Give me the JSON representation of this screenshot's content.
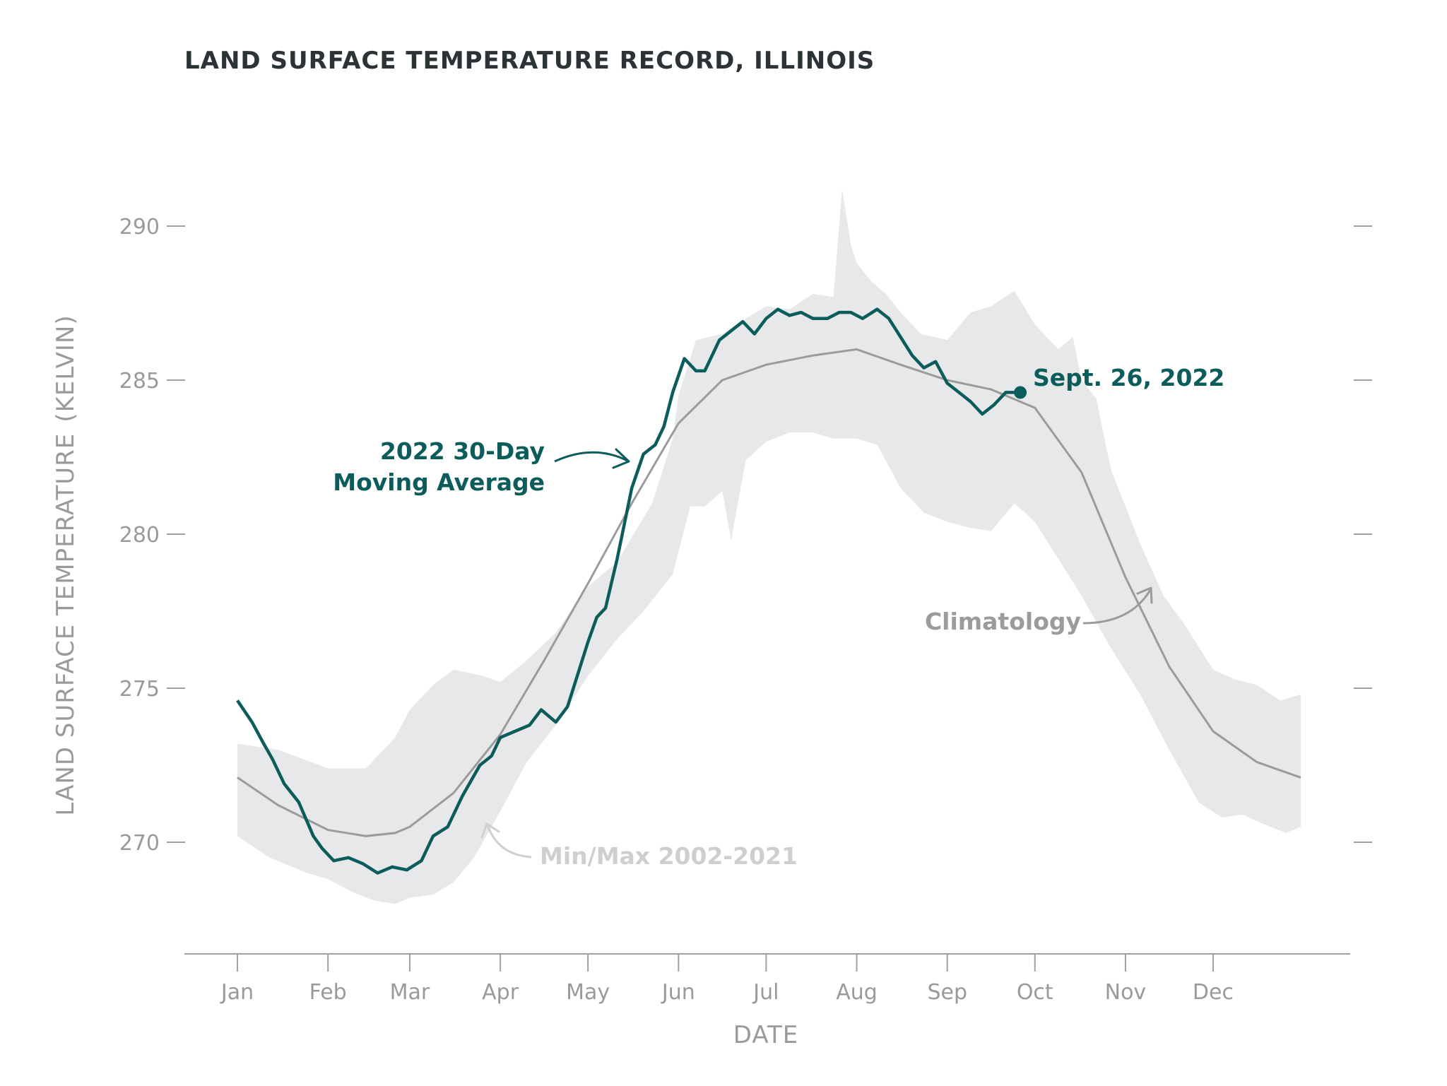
{
  "chart_data": {
    "type": "line",
    "title": "LAND SURFACE TEMPERATURE RECORD, ILLINOIS",
    "xlabel": "DATE",
    "ylabel": "LAND SURFACE TEMPERATURE",
    "ylabel_units": "(KELVIN)",
    "ylim": [
      266,
      295
    ],
    "yticks": [
      270,
      275,
      280,
      285,
      290
    ],
    "x_unit": "day_of_year",
    "xlim": [
      1,
      365
    ],
    "months": [
      {
        "label": "Jan",
        "day": 1
      },
      {
        "label": "Feb",
        "day": 32
      },
      {
        "label": "Mar",
        "day": 60
      },
      {
        "label": "Apr",
        "day": 91
      },
      {
        "label": "May",
        "day": 121
      },
      {
        "label": "Jun",
        "day": 152
      },
      {
        "label": "Jul",
        "day": 182
      },
      {
        "label": "Aug",
        "day": 213
      },
      {
        "label": "Sep",
        "day": 244
      },
      {
        "label": "Oct",
        "day": 274
      },
      {
        "label": "Nov",
        "day": 305
      },
      {
        "label": "Dec",
        "day": 335
      }
    ],
    "series": [
      {
        "name": "Climatology",
        "color": "#9b9b9b",
        "points": [
          [
            1,
            272.1
          ],
          [
            15,
            271.2
          ],
          [
            32,
            270.4
          ],
          [
            45,
            270.2
          ],
          [
            55,
            270.3
          ],
          [
            60,
            270.5
          ],
          [
            75,
            271.6
          ],
          [
            91,
            273.5
          ],
          [
            106,
            275.9
          ],
          [
            121,
            278.4
          ],
          [
            136,
            281.0
          ],
          [
            152,
            283.6
          ],
          [
            167,
            285.0
          ],
          [
            182,
            285.5
          ],
          [
            198,
            285.8
          ],
          [
            213,
            286.0
          ],
          [
            228,
            285.5
          ],
          [
            244,
            285.0
          ],
          [
            259,
            284.7
          ],
          [
            274,
            284.1
          ],
          [
            290,
            282.0
          ],
          [
            305,
            278.6
          ],
          [
            320,
            275.7
          ],
          [
            335,
            273.6
          ],
          [
            350,
            272.6
          ],
          [
            365,
            272.1
          ]
        ]
      },
      {
        "name": "2022 30-Day Moving Average",
        "color": "#0d5c5c",
        "points": [
          [
            1,
            274.6
          ],
          [
            6,
            273.9
          ],
          [
            10,
            273.2
          ],
          [
            13,
            272.7
          ],
          [
            17,
            271.9
          ],
          [
            22,
            271.3
          ],
          [
            27,
            270.2
          ],
          [
            30,
            269.8
          ],
          [
            34,
            269.4
          ],
          [
            39,
            269.5
          ],
          [
            44,
            269.3
          ],
          [
            49,
            269.0
          ],
          [
            54,
            269.2
          ],
          [
            59,
            269.1
          ],
          [
            64,
            269.4
          ],
          [
            68,
            270.2
          ],
          [
            73,
            270.5
          ],
          [
            78,
            271.5
          ],
          [
            84,
            272.5
          ],
          [
            88,
            272.8
          ],
          [
            91,
            273.4
          ],
          [
            96,
            273.6
          ],
          [
            101,
            273.8
          ],
          [
            105,
            274.3
          ],
          [
            110,
            273.9
          ],
          [
            114,
            274.4
          ],
          [
            118,
            275.6
          ],
          [
            121,
            276.5
          ],
          [
            124,
            277.3
          ],
          [
            127,
            277.6
          ],
          [
            131,
            279.2
          ],
          [
            136,
            281.5
          ],
          [
            140,
            282.6
          ],
          [
            144,
            282.9
          ],
          [
            147,
            283.5
          ],
          [
            150,
            284.6
          ],
          [
            154,
            285.7
          ],
          [
            158,
            285.3
          ],
          [
            161,
            285.3
          ],
          [
            166,
            286.3
          ],
          [
            170,
            286.6
          ],
          [
            174,
            286.9
          ],
          [
            178,
            286.5
          ],
          [
            182,
            287.0
          ],
          [
            186,
            287.3
          ],
          [
            190,
            287.1
          ],
          [
            194,
            287.2
          ],
          [
            198,
            287.0
          ],
          [
            203,
            287.0
          ],
          [
            207,
            287.2
          ],
          [
            211,
            287.2
          ],
          [
            215,
            287.0
          ],
          [
            220,
            287.3
          ],
          [
            224,
            287.0
          ],
          [
            228,
            286.4
          ],
          [
            232,
            285.8
          ],
          [
            236,
            285.4
          ],
          [
            240,
            285.6
          ],
          [
            244,
            284.9
          ],
          [
            248,
            284.6
          ],
          [
            252,
            284.3
          ],
          [
            256,
            283.9
          ],
          [
            260,
            284.2
          ],
          [
            264,
            284.6
          ],
          [
            266,
            284.6
          ],
          [
            269,
            284.6
          ]
        ]
      }
    ],
    "band": {
      "name": "Min/Max 2002-2021",
      "color": "#e7e8e9",
      "upper": [
        [
          1,
          273.2
        ],
        [
          15,
          273.0
        ],
        [
          32,
          272.4
        ],
        [
          45,
          272.4
        ],
        [
          55,
          273.4
        ],
        [
          60,
          274.3
        ],
        [
          68,
          275.1
        ],
        [
          75,
          275.6
        ],
        [
          85,
          275.4
        ],
        [
          91,
          275.2
        ],
        [
          100,
          275.9
        ],
        [
          110,
          276.8
        ],
        [
          121,
          278.3
        ],
        [
          131,
          279.1
        ],
        [
          136,
          279.9
        ],
        [
          143,
          281.0
        ],
        [
          150,
          283.1
        ],
        [
          152,
          284.5
        ],
        [
          158,
          286.3
        ],
        [
          167,
          286.5
        ],
        [
          175,
          287.0
        ],
        [
          182,
          287.4
        ],
        [
          190,
          287.3
        ],
        [
          198,
          287.8
        ],
        [
          205,
          287.7
        ],
        [
          208,
          291.2
        ],
        [
          211,
          289.4
        ],
        [
          213,
          288.8
        ],
        [
          218,
          288.2
        ],
        [
          223,
          287.8
        ],
        [
          228,
          287.2
        ],
        [
          235,
          286.5
        ],
        [
          244,
          286.3
        ],
        [
          252,
          287.2
        ],
        [
          259,
          287.4
        ],
        [
          267,
          287.9
        ],
        [
          274,
          286.8
        ],
        [
          282,
          286.0
        ],
        [
          287,
          286.4
        ],
        [
          290,
          285.0
        ],
        [
          295,
          284.4
        ],
        [
          300,
          282.1
        ],
        [
          305,
          280.9
        ],
        [
          310,
          279.7
        ],
        [
          318,
          278.0
        ],
        [
          325,
          277.1
        ],
        [
          335,
          275.6
        ],
        [
          342,
          275.3
        ],
        [
          350,
          275.1
        ],
        [
          358,
          274.6
        ],
        [
          365,
          274.8
        ]
      ],
      "lower": [
        [
          1,
          270.2
        ],
        [
          12,
          269.5
        ],
        [
          25,
          269.0
        ],
        [
          32,
          268.8
        ],
        [
          40,
          268.4
        ],
        [
          48,
          268.1
        ],
        [
          55,
          268.0
        ],
        [
          60,
          268.2
        ],
        [
          68,
          268.3
        ],
        [
          75,
          268.7
        ],
        [
          82,
          269.5
        ],
        [
          91,
          271.0
        ],
        [
          100,
          272.6
        ],
        [
          110,
          273.8
        ],
        [
          121,
          275.4
        ],
        [
          131,
          276.6
        ],
        [
          140,
          277.5
        ],
        [
          150,
          278.7
        ],
        [
          156,
          280.9
        ],
        [
          161,
          280.9
        ],
        [
          167,
          281.4
        ],
        [
          170,
          279.8
        ],
        [
          175,
          282.4
        ],
        [
          182,
          283.0
        ],
        [
          190,
          283.3
        ],
        [
          198,
          283.3
        ],
        [
          205,
          283.1
        ],
        [
          213,
          283.1
        ],
        [
          220,
          282.9
        ],
        [
          228,
          281.5
        ],
        [
          236,
          280.7
        ],
        [
          244,
          280.4
        ],
        [
          252,
          280.2
        ],
        [
          259,
          280.1
        ],
        [
          267,
          281.0
        ],
        [
          274,
          280.4
        ],
        [
          282,
          279.2
        ],
        [
          290,
          278.0
        ],
        [
          300,
          276.3
        ],
        [
          310,
          274.8
        ],
        [
          320,
          273.0
        ],
        [
          330,
          271.3
        ],
        [
          338,
          270.8
        ],
        [
          345,
          270.9
        ],
        [
          352,
          270.6
        ],
        [
          360,
          270.3
        ],
        [
          365,
          270.5
        ]
      ]
    },
    "annotations": {
      "moving_average_line1": "2022 30-Day",
      "moving_average_line2": "Moving Average",
      "endpoint_label": "Sept. 26, 2022",
      "endpoint": {
        "day": 269,
        "value": 284.6
      },
      "climatology_label": "Climatology",
      "band_label": "Min/Max 2002-2021"
    }
  }
}
